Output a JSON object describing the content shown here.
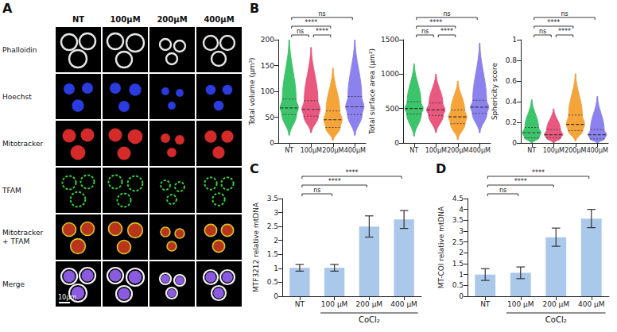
{
  "image_panel": {
    "panel_label": "A",
    "columns": [
      "NT",
      "100μM",
      "200μM",
      "400μM"
    ],
    "rows": [
      "Phalloidin",
      "Hoechst",
      "Mitotracker",
      "TFAM",
      "Mitotracker + TFAM",
      "Merge"
    ],
    "scale_bar": "10μm"
  },
  "chart_data": [
    {
      "type": "violin",
      "panel_label": "B",
      "ylabel": "Total volume (μm³)",
      "categories": [
        "NT",
        "100μM",
        "200μM",
        "400μM"
      ],
      "colors": [
        "#3cc46a",
        "#e9587e",
        "#f5a43a",
        "#8c82ee"
      ],
      "stats": [
        {
          "min": 15,
          "q1": 55,
          "median": 68,
          "q3": 85,
          "max": 200
        },
        {
          "min": 20,
          "q1": 52,
          "median": 65,
          "q3": 82,
          "max": 185
        },
        {
          "min": 5,
          "q1": 30,
          "median": 45,
          "q3": 62,
          "max": 145
        },
        {
          "min": 15,
          "q1": 55,
          "median": 70,
          "q3": 90,
          "max": 200
        }
      ],
      "ylim": [
        0,
        200
      ],
      "yticks": [
        0,
        50,
        100,
        150,
        200
      ],
      "grid": false,
      "comparisons": [
        {
          "from": "NT",
          "to": "100μM",
          "label": "ns"
        },
        {
          "from": "100μM",
          "to": "200μM",
          "label": "****"
        },
        {
          "from": "NT",
          "to": "200μM",
          "label": "****"
        },
        {
          "from": "NT",
          "to": "400μM",
          "label": "ns"
        }
      ]
    },
    {
      "type": "violin",
      "ylabel": "Total surface area (μm²)",
      "categories": [
        "NT",
        "100μM",
        "200μM",
        "400μM"
      ],
      "colors": [
        "#3cc46a",
        "#e9587e",
        "#f5a43a",
        "#8c82ee"
      ],
      "stats": [
        {
          "min": 100,
          "q1": 420,
          "median": 500,
          "q3": 600,
          "max": 1150
        },
        {
          "min": 150,
          "q1": 400,
          "median": 480,
          "q3": 580,
          "max": 1000
        },
        {
          "min": 50,
          "q1": 280,
          "median": 380,
          "q3": 480,
          "max": 900
        },
        {
          "min": 150,
          "q1": 430,
          "median": 520,
          "q3": 620,
          "max": 1450
        }
      ],
      "ylim": [
        0,
        1500
      ],
      "yticks": [
        0,
        500,
        1000,
        1500
      ],
      "grid": false,
      "comparisons": [
        {
          "from": "NT",
          "to": "100μM",
          "label": "ns"
        },
        {
          "from": "100μM",
          "to": "200μM",
          "label": "****"
        },
        {
          "from": "NT",
          "to": "200μM",
          "label": "****"
        },
        {
          "from": "NT",
          "to": "400μM",
          "label": "ns"
        }
      ]
    },
    {
      "type": "violin",
      "ylabel": "Sphericity score",
      "categories": [
        "NT",
        "100μM",
        "200μM",
        "400μM"
      ],
      "colors": [
        "#3cc46a",
        "#e9587e",
        "#f5a43a",
        "#8c82ee"
      ],
      "stats": [
        {
          "min": 0,
          "q1": 0.05,
          "median": 0.1,
          "q3": 0.15,
          "max": 0.42
        },
        {
          "min": 0,
          "q1": 0.05,
          "median": 0.08,
          "q3": 0.13,
          "max": 0.33
        },
        {
          "min": 0.02,
          "q1": 0.12,
          "median": 0.18,
          "q3": 0.27,
          "max": 0.67
        },
        {
          "min": 0,
          "q1": 0.04,
          "median": 0.08,
          "q3": 0.13,
          "max": 0.45
        }
      ],
      "ylim": [
        0,
        1
      ],
      "yticks": [
        0,
        0.2,
        0.4,
        0.6,
        0.8,
        1
      ],
      "grid": false,
      "comparisons": [
        {
          "from": "NT",
          "to": "100μM",
          "label": "ns"
        },
        {
          "from": "100μM",
          "to": "200μM",
          "label": "****"
        },
        {
          "from": "NT",
          "to": "200μM",
          "label": "****"
        },
        {
          "from": "NT",
          "to": "400μM",
          "label": "ns"
        }
      ]
    },
    {
      "type": "bar",
      "panel_label": "C",
      "ylabel": "MTF3212 relative mtDNA",
      "categories": [
        "NT",
        "100 μM",
        "200 μM",
        "400 μM"
      ],
      "values": [
        1.02,
        1.02,
        2.5,
        2.75
      ],
      "errors": [
        0.12,
        0.12,
        0.38,
        0.32
      ],
      "color": "#a9c8ea",
      "ylim": [
        0,
        3.5
      ],
      "yticks": [
        0,
        0.5,
        1,
        1.5,
        2,
        2.5,
        3,
        3.5
      ],
      "grid": false,
      "group": {
        "label": "CoCl₂",
        "categories": [
          "100 μM",
          "200 μM",
          "400 μM"
        ]
      },
      "comparisons": [
        {
          "from": "NT",
          "to": "100 μM",
          "label": "ns"
        },
        {
          "from": "NT",
          "to": "200 μM",
          "label": "****"
        },
        {
          "from": "NT",
          "to": "400 μM",
          "label": "****"
        }
      ]
    },
    {
      "type": "bar",
      "panel_label": "D",
      "ylabel": "MT-COI relative mtDNA",
      "categories": [
        "NT",
        "100 μM",
        "200 μM",
        "400 μM"
      ],
      "values": [
        1.0,
        1.08,
        2.72,
        3.58
      ],
      "errors": [
        0.27,
        0.27,
        0.42,
        0.42
      ],
      "color": "#a9c8ea",
      "ylim": [
        0,
        4.5
      ],
      "yticks": [
        0,
        0.5,
        1,
        1.5,
        2,
        2.5,
        3,
        3.5,
        4,
        4.5
      ],
      "grid": false,
      "group": {
        "label": "CoCl₂",
        "categories": [
          "100 μM",
          "200 μM",
          "400 μM"
        ]
      },
      "comparisons": [
        {
          "from": "NT",
          "to": "100 μM",
          "label": "ns"
        },
        {
          "from": "NT",
          "to": "200 μM",
          "label": "****"
        },
        {
          "from": "NT",
          "to": "400 μM",
          "label": "****"
        }
      ]
    }
  ]
}
